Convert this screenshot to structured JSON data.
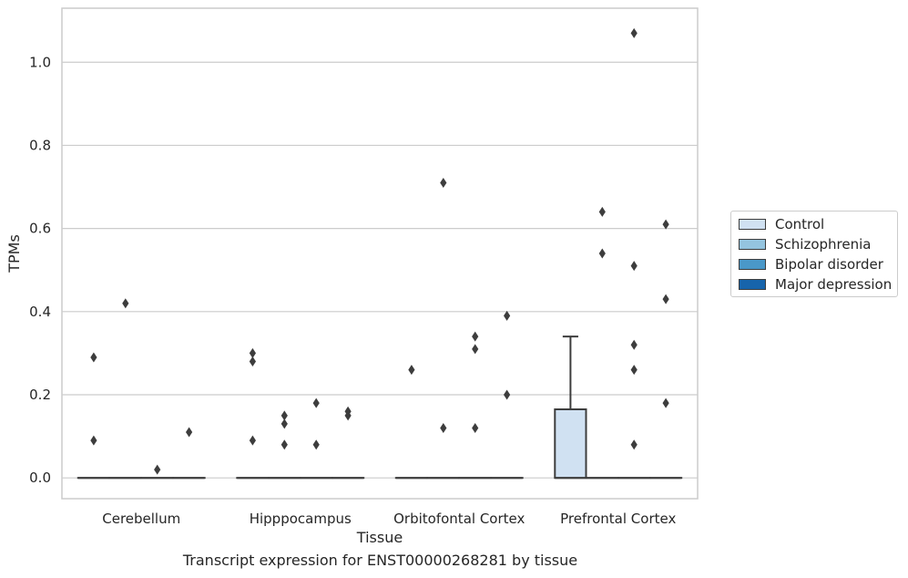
{
  "caption": "Transcript expression for ENST00000268281 by tissue",
  "chart_data": {
    "type": "boxplot",
    "xlabel": "Tissue",
    "ylabel": "TPMs",
    "ylim": [
      -0.05,
      1.13
    ],
    "yticks": [
      0.0,
      0.2,
      0.4,
      0.6,
      0.8,
      1.0
    ],
    "ytick_labels": [
      "0.0",
      "0.2",
      "0.4",
      "0.6",
      "0.8",
      "1.0"
    ],
    "grid": "horizontal",
    "legend_position": "right",
    "categories": [
      "Cerebellum",
      "Hipppocampus",
      "Orbitofontal Cortex",
      "Prefrontal Cortex"
    ],
    "series": [
      {
        "name": "Control",
        "color": "#d0e1f2",
        "boxes": [
          {
            "category": "Cerebellum",
            "q1": 0,
            "median": 0,
            "q3": 0,
            "whisker_low": 0,
            "whisker_high": 0,
            "outliers": [
              0.29,
              0.09
            ]
          },
          {
            "category": "Hipppocampus",
            "q1": 0,
            "median": 0,
            "q3": 0,
            "whisker_low": 0,
            "whisker_high": 0,
            "outliers": [
              0.3,
              0.28,
              0.09
            ]
          },
          {
            "category": "Orbitofontal Cortex",
            "q1": 0,
            "median": 0,
            "q3": 0,
            "whisker_low": 0,
            "whisker_high": 0,
            "outliers": [
              0.26
            ]
          },
          {
            "category": "Prefrontal Cortex",
            "q1": 0,
            "median": 0,
            "q3": 0.165,
            "whisker_low": 0,
            "whisker_high": 0.34,
            "outliers": []
          }
        ]
      },
      {
        "name": "Schizophrenia",
        "color": "#94c4df",
        "boxes": [
          {
            "category": "Cerebellum",
            "q1": 0,
            "median": 0,
            "q3": 0,
            "whisker_low": 0,
            "whisker_high": 0,
            "outliers": [
              0.42
            ]
          },
          {
            "category": "Hipppocampus",
            "q1": 0,
            "median": 0,
            "q3": 0,
            "whisker_low": 0,
            "whisker_high": 0,
            "outliers": [
              0.15,
              0.13,
              0.08
            ]
          },
          {
            "category": "Orbitofontal Cortex",
            "q1": 0,
            "median": 0,
            "q3": 0,
            "whisker_low": 0,
            "whisker_high": 0,
            "outliers": [
              0.71,
              0.12
            ]
          },
          {
            "category": "Prefrontal Cortex",
            "q1": 0,
            "median": 0,
            "q3": 0,
            "whisker_low": 0,
            "whisker_high": 0,
            "outliers": [
              0.64,
              0.54
            ]
          }
        ]
      },
      {
        "name": "Bipolar disorder",
        "color": "#4a98c9",
        "boxes": [
          {
            "category": "Cerebellum",
            "q1": 0,
            "median": 0,
            "q3": 0,
            "whisker_low": 0,
            "whisker_high": 0,
            "outliers": [
              0.02
            ]
          },
          {
            "category": "Hipppocampus",
            "q1": 0,
            "median": 0,
            "q3": 0,
            "whisker_low": 0,
            "whisker_high": 0,
            "outliers": [
              0.18,
              0.08
            ]
          },
          {
            "category": "Orbitofontal Cortex",
            "q1": 0,
            "median": 0,
            "q3": 0,
            "whisker_low": 0,
            "whisker_high": 0,
            "outliers": [
              0.34,
              0.31,
              0.12
            ]
          },
          {
            "category": "Prefrontal Cortex",
            "q1": 0,
            "median": 0,
            "q3": 0,
            "whisker_low": 0,
            "whisker_high": 0,
            "outliers": [
              1.07,
              0.51,
              0.32,
              0.26,
              0.08
            ]
          }
        ]
      },
      {
        "name": "Major depression",
        "color": "#1764ab",
        "boxes": [
          {
            "category": "Cerebellum",
            "q1": 0,
            "median": 0,
            "q3": 0,
            "whisker_low": 0,
            "whisker_high": 0,
            "outliers": [
              0.11
            ]
          },
          {
            "category": "Hipppocampus",
            "q1": 0,
            "median": 0,
            "q3": 0,
            "whisker_low": 0,
            "whisker_high": 0,
            "outliers": [
              0.16,
              0.15
            ]
          },
          {
            "category": "Orbitofontal Cortex",
            "q1": 0,
            "median": 0,
            "q3": 0,
            "whisker_low": 0,
            "whisker_high": 0,
            "outliers": [
              0.39,
              0.2
            ]
          },
          {
            "category": "Prefrontal Cortex",
            "q1": 0,
            "median": 0,
            "q3": 0,
            "whisker_low": 0,
            "whisker_high": 0,
            "outliers": [
              0.61,
              0.43,
              0.18
            ]
          }
        ]
      }
    ]
  }
}
